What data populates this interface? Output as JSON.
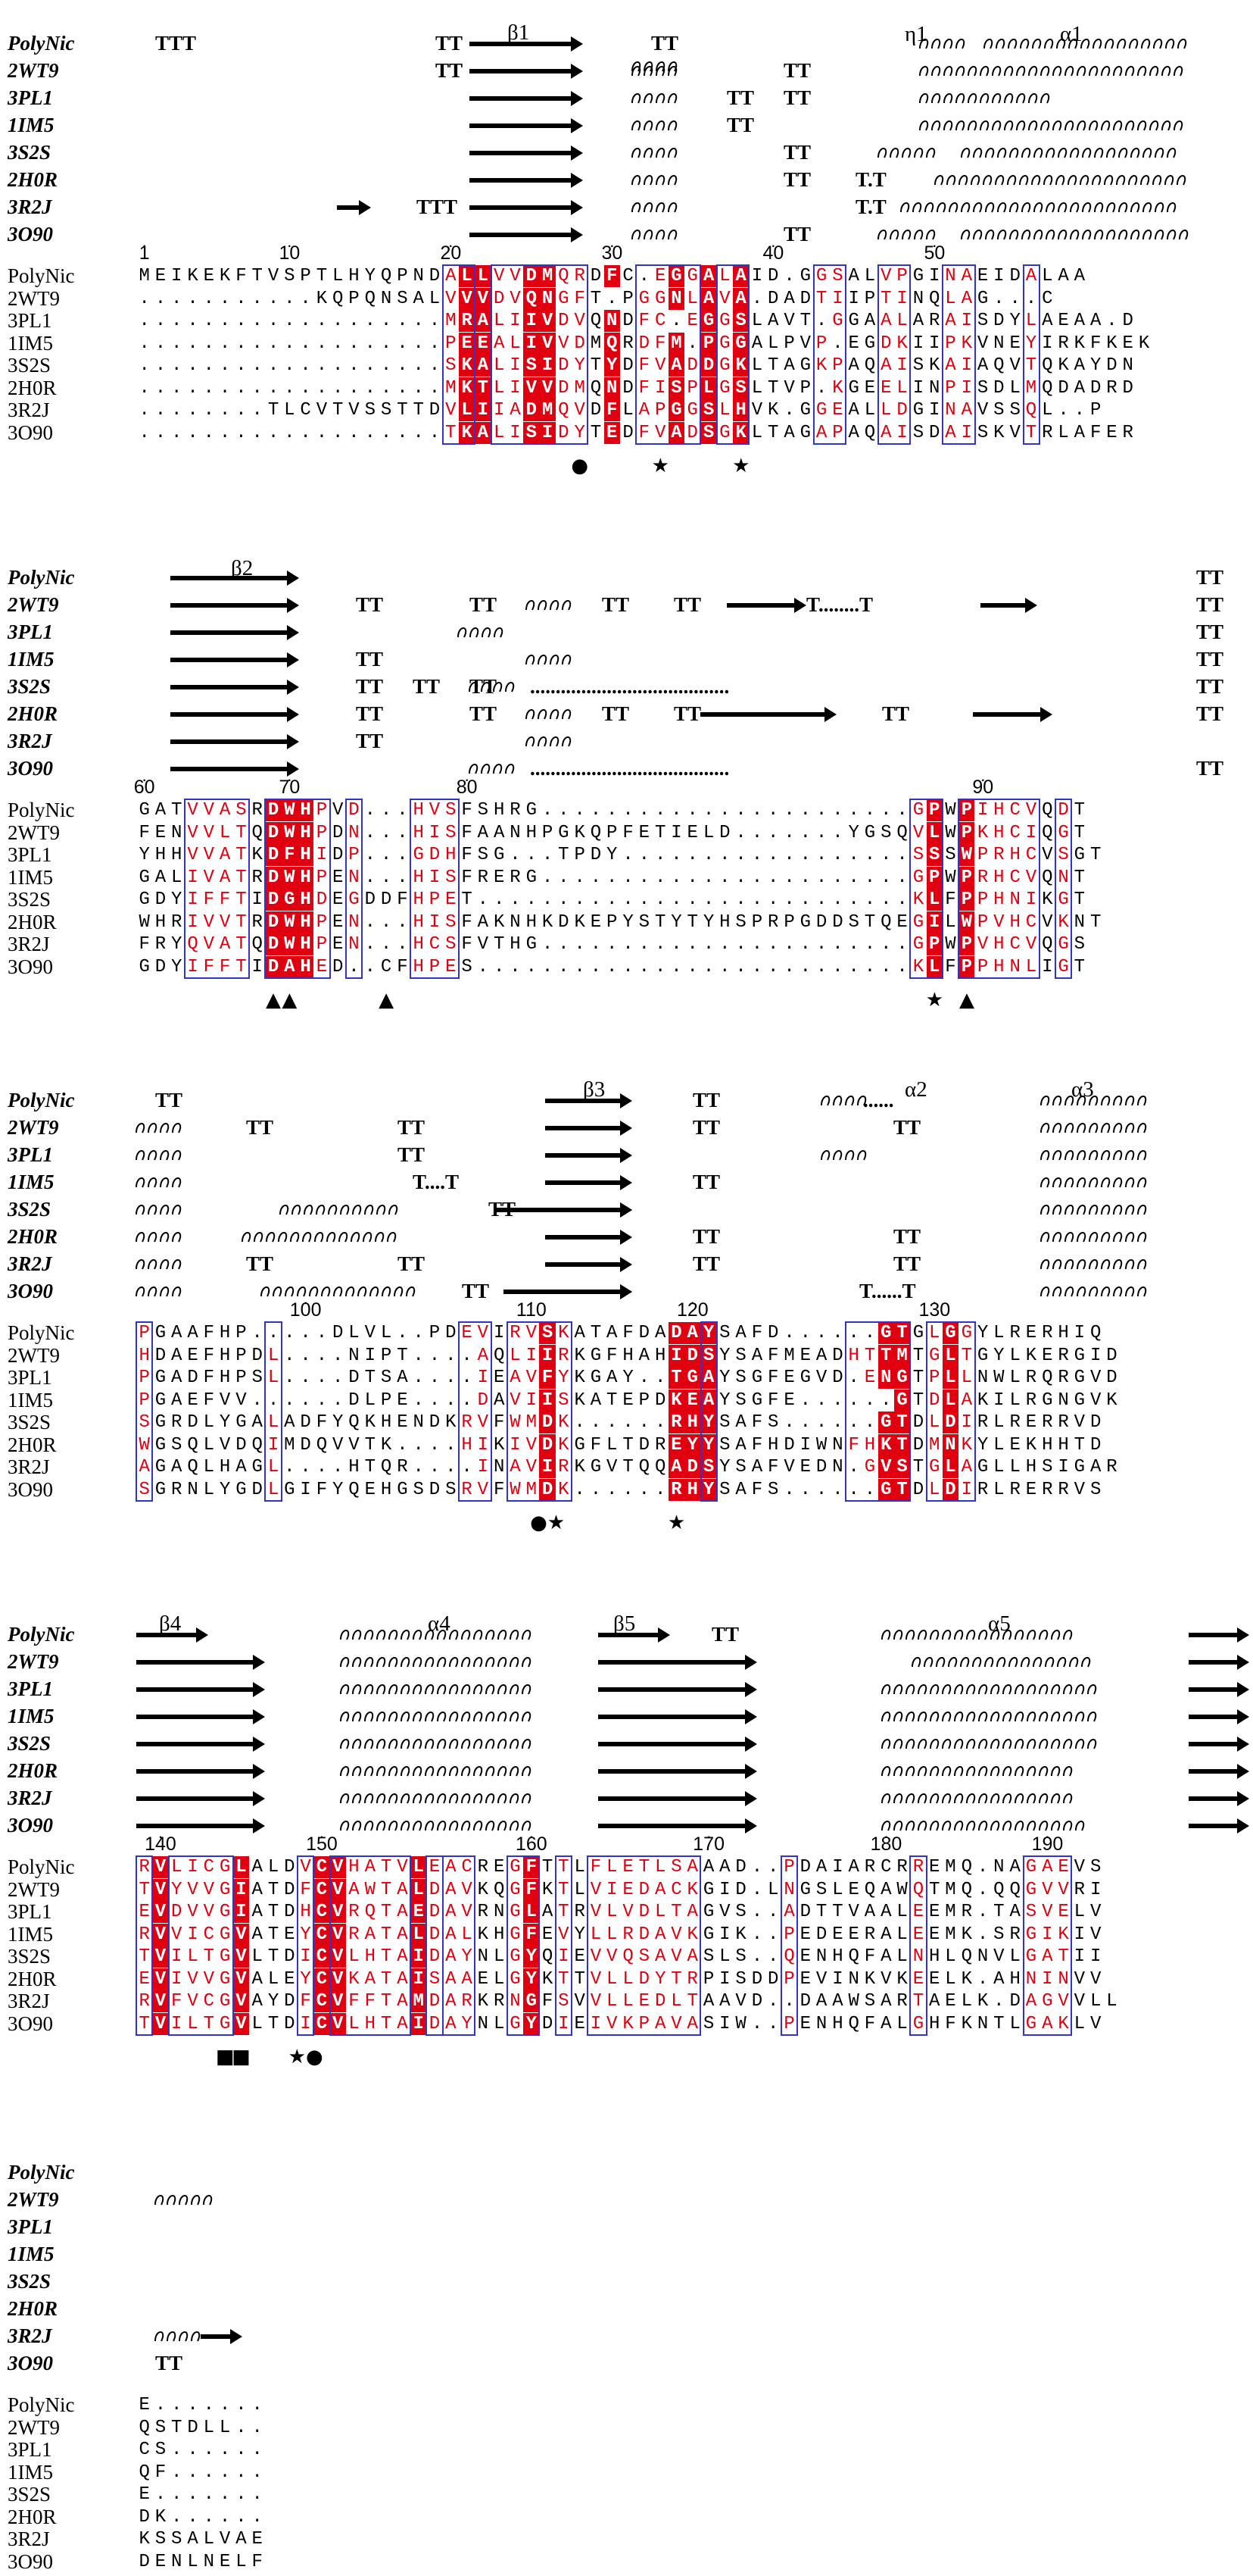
{
  "structures": [
    "PolyNic",
    "2WT9",
    "3PL1",
    "1IM5",
    "3S2S",
    "2H0R",
    "3R2J",
    "3O90"
  ],
  "blocks": [
    {
      "ss": [
        {
          "text": "TTT",
          "cols": [
            [
              2,
              "TTT"
            ]
          ],
          "ann": "PolyNic"
        },
        {
          "ann": "2WT9"
        },
        {
          "ann": "3PL1"
        },
        {
          "ann": "1IM5"
        },
        {
          "ann": "3S2S"
        },
        {
          "ann": "2H0R"
        },
        {
          "ann": "3R2J"
        },
        {
          "ann": "3O90"
        }
      ],
      "numbers": [
        [
          1,
          "1"
        ],
        [
          10,
          "10"
        ],
        [
          20,
          "20"
        ],
        [
          30,
          "30"
        ],
        [
          40,
          "40"
        ],
        [
          50,
          "50"
        ]
      ],
      "seqs": [
        "MEIKEKFTVSPTLHYQPNDALLVVDMQRDFC.EGGALAID.GGSALVPGINAEIDALAA",
        "...........KQPQNSALVVVDVQNGFT.PGGNLAVA.DADTIIPTINQLAG...C",
        "...................MRALIIVDVQNDFC.EGGSLAVT.GGAALARAISDYLAEAA.D",
        "...................PEEALIVVDMQRDFM.PGGALPVP.EGDKIIPKVNEYIRKFKEK",
        "...................SKALISIDYTYDFVADDGKLTAGKPAQAISKAIAQVTQKAYDN",
        "...................MKTLIVVDMQNDFISPLGSLTVP.KGEELINPISDLMQDADRD",
        "........TLCVTVSSTTDVLIIADMQVDFLAPGGSLHVK.GGEALLDGINAVSSQL..P",
        "...................TKALISIDYTEDFVADSGKLTAGAPAQAISDAISKVTRLAFER"
      ],
      "marks": [
        [
          28,
          "●"
        ],
        [
          33,
          "★"
        ],
        [
          38,
          "★"
        ]
      ]
    },
    {
      "numbers": [
        [
          60,
          "60"
        ],
        [
          70,
          "70"
        ],
        [
          80,
          "80"
        ],
        [
          90,
          "90"
        ]
      ],
      "seqs": [
        "GATVVASRDWHPVD...HVSFSHRG.......................GPWPIHCVQDT",
        "FENVVLTQDWHPDN...HISFAANHPGKQPFETIELD.......YGSQVLWPKHCIQGT",
        "YHHVVATKDFHIDP...GDHFSG...TPDY..................SSSWPRHCVSGT",
        "GALIVATRDWHPEN...HISFRERG.......................GPWPRHCVQNT",
        "GDYIFFTIDGHDEGDDFHPET...........................KLFPPHNIKGT",
        "WHRIVVTRDWHPEN...HISFAKNHKDKEPYSTYTYHSPRPGDDSTQEGILWPVHCVKNT",
        "FRYQVATQDWHPEN...HCSFVTHG.......................GPWPVHCVQGS",
        "GDYIFFTIDAHED..CFHPES...........................KLFPPHNLIGT"
      ],
      "marks": [
        [
          67,
          "▲"
        ],
        [
          70,
          "▲"
        ],
        [
          76,
          "▲"
        ],
        [
          96,
          "★"
        ],
        [
          99,
          "▲"
        ]
      ]
    },
    {
      "numbers": [
        [
          100,
          "100"
        ],
        [
          110,
          "110"
        ],
        [
          120,
          "120"
        ],
        [
          130,
          "130"
        ]
      ],
      "seqs": [
        "PGAAFHP.....DLVL..PDEVIRVSKATAFDADAYSAFD......GTGLGGYLRERHIQ",
        "HDAEFHPDL....NIPT....AQLIIRKGFHAHIDSYSAFMEADHTTMTGLTGYLKERGID",
        "PGADFHPSL....DTSA....IEAVFYKGAY..TGAYSGFEGVD.ENGTPLLNWLRQRGVD",
        "PGAEFVV......DLPE....DAVIISKATEPDKEAYSGFE......GTDLAKILRGNGVK",
        "SGRDLYGALADFYQKHENDKRVFWMDK......RHYSAFS......GTDLDIRLRERRVD",
        "WGSQLVDQIMDQVVTK....HIKIVDKGFLTDREYYSAFHDIWNFHKTDMNKYLEKHHTD",
        "AGAQLHAGL....HTQR....INAVIRKGVTQQADSYSAFVEDN.GVSTGLAGLLHSIGAR",
        "SGRNLYGDLGIFYQEHGSDSRVFWMDK......RHYSAFS......GTDLDIRLRERRVS"
      ],
      "marks": [
        [
          111,
          "●★"
        ],
        [
          119,
          "★"
        ]
      ]
    },
    {
      "numbers": [
        [
          140,
          "140"
        ],
        [
          150,
          "150"
        ],
        [
          160,
          "160"
        ],
        [
          170,
          "170"
        ],
        [
          180,
          "180"
        ],
        [
          190,
          "190"
        ]
      ],
      "seqs": [
        "RVLICGLALDVCVHATVLEACREGFTTLFLETLSAAAD..PDAIARCRREMQ.NAGAEVS",
        "TVYVVGIATDFCVAWTALDAVKQGFKTLVIEDACKGID.LNGSLEQAWQTMQ.QQGVVRI",
        "EVDVVGIATDHCVRQTAEDAVRNGLATRVLVDLTAGVS..ADTTVAALEEMR.TASVELV",
        "RVVICGVATEYCVRATALDALKHGFEVYLLRDAVKGIK..PEDEERALEEMK.SRGIKIV",
        "TVILTGVLTDICVLHTAIDAYNLGYQIEVVQSAVASLS..QENHQFALNHLQNVLGATII",
        "EVIVVGVALEYCVKATAISAAELGYKTTVLLDYTRPISDDPEVINKVKEELK.AHNINVV",
        "RVFVCGVAYDFCVFFTAMDARKRNGFSVVLLEDLTAAVD..DAAWSARTAELK.DAGVVLL",
        "TVILTGVLTDICVLHTAIDAYNLGYDIEIVKPAVASIW..PENHQFALGHFKNTLGAKLV"
      ],
      "marks": [
        [
          145,
          "■"
        ],
        [
          146,
          "■"
        ],
        [
          149,
          "★●"
        ]
      ]
    },
    {
      "numbers": [],
      "seqs": [
        "E.......",
        "QSTDLL..",
        "CS......",
        "QF......",
        "E.......",
        "DK......",
        "KSSALVAE",
        "DENLNELF"
      ],
      "marks": []
    }
  ],
  "ss_annotations": {
    "b1": "β1",
    "eta1": "η1",
    "a1": "α1",
    "b2": "β2",
    "b3": "β3",
    "a2": "α2",
    "a3": "α3",
    "b4": "β4",
    "a4": "α4",
    "b5": "β5",
    "a5": "α5",
    "TT": "TT",
    "TTT": "TTT",
    "T.T": "T.T",
    "T...T": "T....T"
  },
  "colors": {
    "identity_bg": "#e0000f",
    "similar_text": "#e0000f",
    "frame": "#3333cc"
  }
}
